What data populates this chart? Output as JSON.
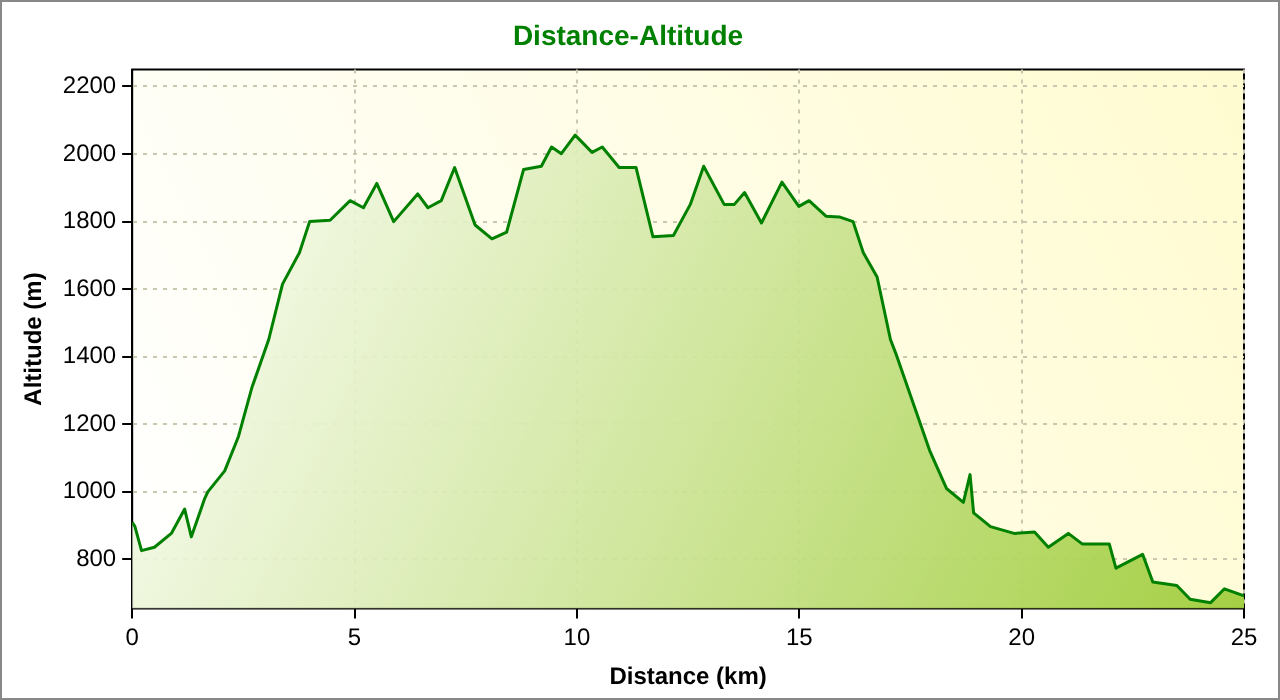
{
  "chart_data": {
    "type": "area",
    "title": "Distance-Altitude",
    "xlabel": "Distance (km)",
    "ylabel": "Altitude (m)",
    "xlim": [
      0,
      25
    ],
    "xticks": [
      0,
      5,
      10,
      15,
      20,
      25
    ],
    "ylim": [
      655,
      2250
    ],
    "yticks": [
      800,
      1000,
      1200,
      1400,
      1600,
      1800,
      2000,
      2200
    ],
    "grid": true,
    "legend": false,
    "series": [
      {
        "color": "#008000",
        "x": [
          0,
          0.06,
          0.21,
          0.5,
          0.88,
          1.18,
          1.33,
          1.63,
          1.7,
          2.08,
          2.39,
          2.69,
          3.07,
          3.38,
          3.76,
          3.99,
          4.45,
          4.9,
          5.2,
          5.5,
          5.88,
          6.42,
          6.65,
          6.95,
          7.25,
          7.71,
          8.09,
          8.42,
          8.8,
          9.2,
          9.43,
          9.65,
          9.96,
          10.34,
          10.57,
          10.95,
          11.33,
          11.71,
          12.17,
          12.55,
          12.85,
          13.31,
          13.54,
          13.77,
          14.15,
          14.61,
          14.99,
          15.22,
          15.6,
          15.9,
          16.21,
          16.44,
          16.75,
          17.05,
          17.17,
          17.55,
          17.93,
          18.31,
          18.69,
          18.84,
          18.92,
          19.3,
          19.83,
          20.29,
          20.6,
          21.05,
          21.36,
          21.97,
          22.12,
          22.72,
          22.95,
          23.49,
          23.79,
          24.25,
          24.56,
          25
        ],
        "values": [
          910,
          898,
          826,
          836,
          877,
          949,
          867,
          980,
          1000,
          1062,
          1164,
          1308,
          1451,
          1615,
          1708,
          1800,
          1804,
          1862,
          1841,
          1913,
          1800,
          1882,
          1841,
          1862,
          1960,
          1790,
          1749,
          1769,
          1954,
          1964,
          2021,
          2001,
          2056,
          2005,
          2021,
          1960,
          1960,
          1755,
          1759,
          1851,
          1964,
          1851,
          1851,
          1886,
          1796,
          1917,
          1845,
          1862,
          1816,
          1814,
          1800,
          1708,
          1636,
          1451,
          1410,
          1267,
          1123,
          1010,
          969,
          1051,
          938,
          897,
          877,
          881,
          836,
          877,
          846,
          846,
          774,
          815,
          733,
          723,
          682,
          672,
          713,
          692
        ]
      }
    ]
  }
}
